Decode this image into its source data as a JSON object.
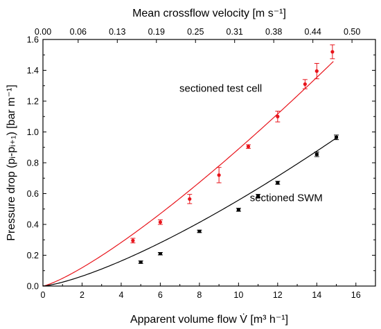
{
  "chart_data": {
    "type": "scatter",
    "xlabel": "Apparent volume flow V̇ [m³ h⁻¹]",
    "ylabel": "Pressure drop (pᵢ-pᵢ₊₁) [bar m⁻¹]",
    "top_xlabel": "Mean crossflow velocity [m s⁻¹]",
    "xlim": [
      0,
      17
    ],
    "ylim": [
      0,
      1.6
    ],
    "xticks": [
      0,
      2,
      4,
      6,
      8,
      10,
      12,
      14,
      16
    ],
    "yticks": [
      0.0,
      0.2,
      0.4,
      0.6,
      0.8,
      1.0,
      1.2,
      1.4,
      1.6
    ],
    "xtick_labels": [
      "0",
      "2",
      "4",
      "6",
      "8",
      "10",
      "12",
      "14",
      "16"
    ],
    "ytick_labels": [
      "0.0",
      "0.2",
      "0.4",
      "0.6",
      "0.8",
      "1.0",
      "1.2",
      "1.4",
      "1.6"
    ],
    "top_ticks": [
      0,
      1.8,
      3.8,
      5.8,
      7.8,
      9.8,
      11.8,
      13.8,
      15.8
    ],
    "top_tick_labels": [
      "0.00",
      "0.06",
      "0.13",
      "0.19",
      "0.25",
      "0.31",
      "0.38",
      "0.44",
      "0.50"
    ],
    "series": [
      {
        "name": "sectioned test cell",
        "color": "#e8141b",
        "x": [
          4.6,
          6.0,
          7.5,
          9.0,
          10.5,
          12.0,
          13.4,
          14.0,
          14.8
        ],
        "y": [
          0.295,
          0.415,
          0.565,
          0.72,
          0.905,
          1.1,
          1.31,
          1.395,
          1.52
        ],
        "err": [
          0.015,
          0.015,
          0.03,
          0.05,
          0.012,
          0.035,
          0.03,
          0.05,
          0.045
        ],
        "fit": {
          "a": 0.05,
          "b": 1.25
        }
      },
      {
        "name": "sectioned SWM",
        "color": "#000000",
        "x": [
          5.0,
          6.0,
          8.0,
          10.0,
          11.0,
          12.0,
          14.0,
          15.0
        ],
        "y": [
          0.155,
          0.21,
          0.355,
          0.495,
          0.585,
          0.67,
          0.855,
          0.965
        ],
        "err": [
          0.008,
          0.008,
          0.008,
          0.01,
          0.01,
          0.01,
          0.015,
          0.015
        ],
        "fit": {
          "a": 0.0253,
          "b": 1.343
        }
      }
    ],
    "annotations": [
      {
        "text": "sectioned test cell",
        "x": 11.2,
        "y": 1.26
      },
      {
        "text": "sectioned SWM",
        "x": 14.3,
        "y": 0.55
      }
    ]
  }
}
